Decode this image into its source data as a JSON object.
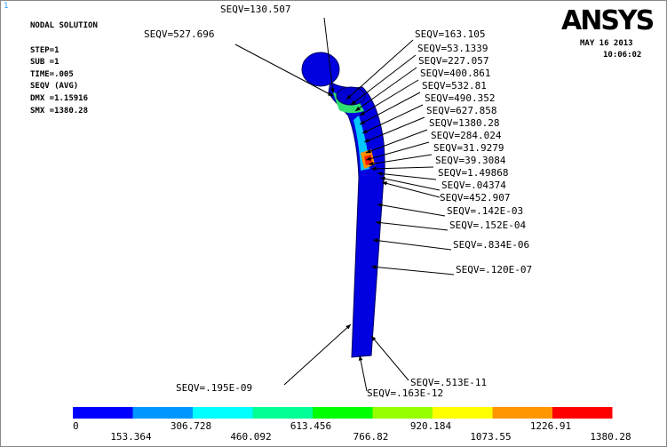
{
  "window_number": "1",
  "info": [
    "NODAL SOLUTION",
    "STEP=1",
    "SUB =1",
    "TIME=.005",
    "SEQV      (AVG)",
    "DMX =1.15916",
    "SMX =1380.28"
  ],
  "logo": "ANSYS",
  "date": "MAY 16 2013",
  "time": "10:06:02",
  "annotations": [
    "SEQV=130.507",
    "SEQV=527.696",
    "SEQV=163.105",
    "SEQV=53.1339",
    "SEQV=227.057",
    "SEQV=400.861",
    "SEQV=532.81",
    "SEQV=490.352",
    "SEQV=627.858",
    "SEQV=1380.28",
    "SEQV=284.024",
    "SEQV=31.9279",
    "SEQV=39.3084",
    "SEQV=1.49868",
    "SEQV=.04374",
    "SEQV=452.907",
    "SEQV=.142E-03",
    "SEQV=.152E-04",
    "SEQV=.834E-06",
    "SEQV=.120E-07",
    "SEQV=.195E-09",
    "SEQV=.513E-11",
    "SEQV=.163E-12"
  ],
  "legend": {
    "labels": [
      "0",
      "153.364",
      "306.728",
      "460.092",
      "613.456",
      "766.82",
      "920.184",
      "1073.55",
      "1226.91",
      "1380.28"
    ]
  }
}
